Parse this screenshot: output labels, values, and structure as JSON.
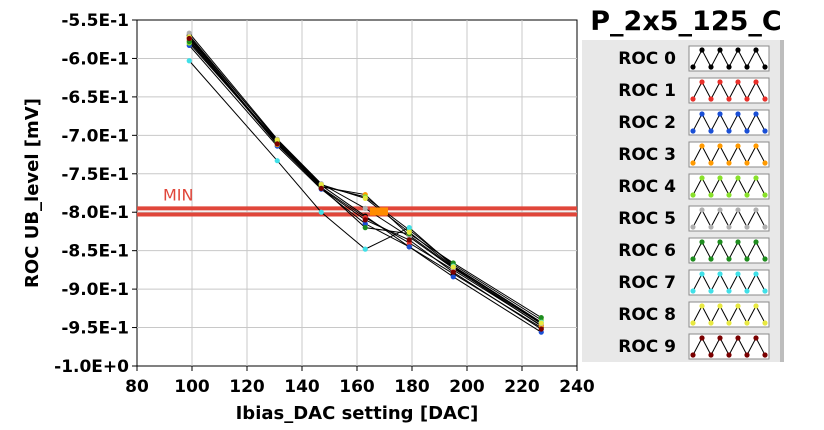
{
  "chart_data": {
    "type": "line",
    "title": "P_2x5_125_C",
    "xlabel": "Ibias_DAC setting [DAC]",
    "ylabel": "ROC UB_level [mV]",
    "xlim": [
      80,
      240
    ],
    "ylim": [
      -1.0,
      -0.55
    ],
    "x_ticks": [
      80,
      100,
      120,
      140,
      160,
      180,
      200,
      220,
      240
    ],
    "x_tick_labels": [
      "80",
      "100",
      "120",
      "140",
      "160",
      "180",
      "200",
      "220",
      "240"
    ],
    "y_ticks": [
      -0.55,
      -0.6,
      -0.65,
      -0.7,
      -0.75,
      -0.8,
      -0.85,
      -0.9,
      -0.95,
      -1.0
    ],
    "y_tick_labels": [
      "-5.5E-1",
      "-6.0E-1",
      "-6.5E-1",
      "-7.0E-1",
      "-7.5E-1",
      "-8.0E-1",
      "-8.5E-1",
      "-9.0E-1",
      "-9.5E-1",
      "-1.0E+0"
    ],
    "grid": true,
    "legend_position": "right",
    "annotation": {
      "label": "MIN",
      "level_upper": -0.795,
      "level_lower": -0.803,
      "color": "#e0463a"
    },
    "target_marker": {
      "x": 168,
      "y": -0.799,
      "color": "#ff8c00"
    },
    "series": [
      {
        "name": "ROC 0",
        "color": "#000000",
        "x": [
          99,
          131,
          147,
          163,
          179,
          195,
          227
        ],
        "y": [
          -0.57,
          -0.707,
          -0.765,
          -0.805,
          -0.845,
          -0.88,
          -0.95
        ]
      },
      {
        "name": "ROC 1",
        "color": "#e8302a",
        "x": [
          99,
          131,
          147,
          163,
          179,
          195,
          227
        ],
        "y": [
          -0.573,
          -0.71,
          -0.768,
          -0.807,
          -0.84,
          -0.875,
          -0.947
        ]
      },
      {
        "name": "ROC 2",
        "color": "#1a4fd6",
        "x": [
          99,
          131,
          147,
          163,
          179,
          195,
          227
        ],
        "y": [
          -0.583,
          -0.714,
          -0.77,
          -0.815,
          -0.845,
          -0.884,
          -0.956
        ]
      },
      {
        "name": "ROC 3",
        "color": "#ff9a00",
        "x": [
          99,
          131,
          147,
          163,
          179,
          195,
          227
        ],
        "y": [
          -0.576,
          -0.712,
          -0.767,
          -0.777,
          -0.83,
          -0.872,
          -0.948
        ]
      },
      {
        "name": "ROC 4",
        "color": "#88e02a",
        "x": [
          99,
          131,
          147,
          163,
          179,
          195,
          227
        ],
        "y": [
          -0.58,
          -0.709,
          -0.766,
          -0.78,
          -0.823,
          -0.868,
          -0.94
        ]
      },
      {
        "name": "ROC 5",
        "color": "#b0b0b0",
        "x": [
          99,
          131,
          147,
          163,
          179,
          195,
          227
        ],
        "y": [
          -0.567,
          -0.705,
          -0.763,
          -0.795,
          -0.832,
          -0.873,
          -0.945
        ]
      },
      {
        "name": "ROC 6",
        "color": "#1e8c1e",
        "x": [
          99,
          131,
          147,
          163,
          179,
          195,
          227
        ],
        "y": [
          -0.578,
          -0.708,
          -0.768,
          -0.82,
          -0.828,
          -0.866,
          -0.937
        ]
      },
      {
        "name": "ROC 7",
        "color": "#40e0e8",
        "x": [
          99,
          131,
          147,
          163,
          179,
          195,
          227
        ],
        "y": [
          -0.603,
          -0.733,
          -0.8,
          -0.848,
          -0.82,
          -0.87,
          -0.943
        ]
      },
      {
        "name": "ROC 8",
        "color": "#e8e840",
        "x": [
          99,
          131,
          147,
          163,
          179,
          195,
          227
        ],
        "y": [
          -0.572,
          -0.706,
          -0.764,
          -0.782,
          -0.826,
          -0.871,
          -0.944
        ]
      },
      {
        "name": "ROC 9",
        "color": "#7a0000",
        "x": [
          99,
          131,
          147,
          163,
          179,
          195,
          227
        ],
        "y": [
          -0.574,
          -0.711,
          -0.769,
          -0.81,
          -0.836,
          -0.878,
          -0.952
        ]
      }
    ]
  }
}
